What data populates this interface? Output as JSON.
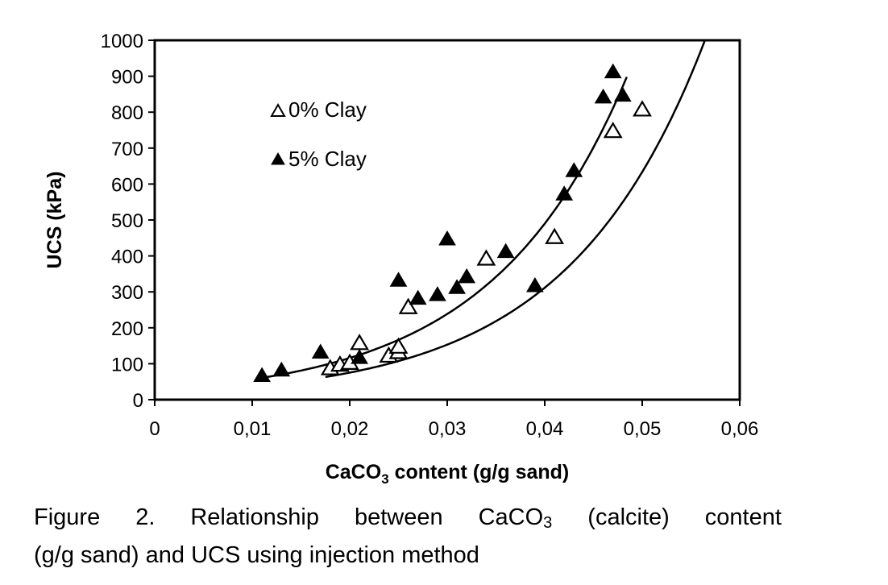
{
  "chart_data": {
    "type": "scatter",
    "xlabel": "CaCO3 content (g/g sand)",
    "ylabel": "UCS (kPa)",
    "xlim": [
      0,
      0.06
    ],
    "ylim": [
      0,
      1000
    ],
    "x_ticks": [
      "0",
      "0,01",
      "0,02",
      "0,03",
      "0,04",
      "0,05",
      "0,06"
    ],
    "y_ticks": [
      "0",
      "100",
      "200",
      "300",
      "400",
      "500",
      "600",
      "700",
      "800",
      "900",
      "1000"
    ],
    "grid": false,
    "legend_position": "upper-left inside plot",
    "series": [
      {
        "name": "0% Clay",
        "marker": "open-triangle",
        "points": [
          [
            0.018,
            85
          ],
          [
            0.019,
            95
          ],
          [
            0.02,
            100
          ],
          [
            0.021,
            155
          ],
          [
            0.024,
            120
          ],
          [
            0.025,
            130
          ],
          [
            0.025,
            145
          ],
          [
            0.026,
            255
          ],
          [
            0.034,
            390
          ],
          [
            0.041,
            450
          ],
          [
            0.047,
            745
          ],
          [
            0.05,
            805
          ]
        ],
        "trendline": {
          "type": "exponential",
          "a": 18.2,
          "b": 71
        }
      },
      {
        "name": "5% Clay",
        "marker": "filled-triangle",
        "points": [
          [
            0.011,
            65
          ],
          [
            0.013,
            80
          ],
          [
            0.017,
            130
          ],
          [
            0.021,
            115
          ],
          [
            0.025,
            330
          ],
          [
            0.027,
            280
          ],
          [
            0.029,
            290
          ],
          [
            0.03,
            445
          ],
          [
            0.031,
            310
          ],
          [
            0.032,
            340
          ],
          [
            0.036,
            410
          ],
          [
            0.039,
            315
          ],
          [
            0.042,
            570
          ],
          [
            0.043,
            635
          ],
          [
            0.046,
            840
          ],
          [
            0.047,
            910
          ],
          [
            0.048,
            845
          ]
        ],
        "trendline": {
          "type": "exponential",
          "a": 27.5,
          "b": 72
        }
      }
    ]
  },
  "caption": {
    "line1_words": [
      "Figure",
      "2.",
      "Relationship",
      "between"
    ],
    "formula_prefix": "CaCO",
    "formula_sub": "3",
    "line1_tail_words": [
      "(calcite)",
      "content"
    ],
    "line2": "(g/g sand) and UCS using injection method"
  },
  "xlabel_parts": {
    "before": "CaCO",
    "sub": "3",
    "after": " content (g/g sand)"
  }
}
